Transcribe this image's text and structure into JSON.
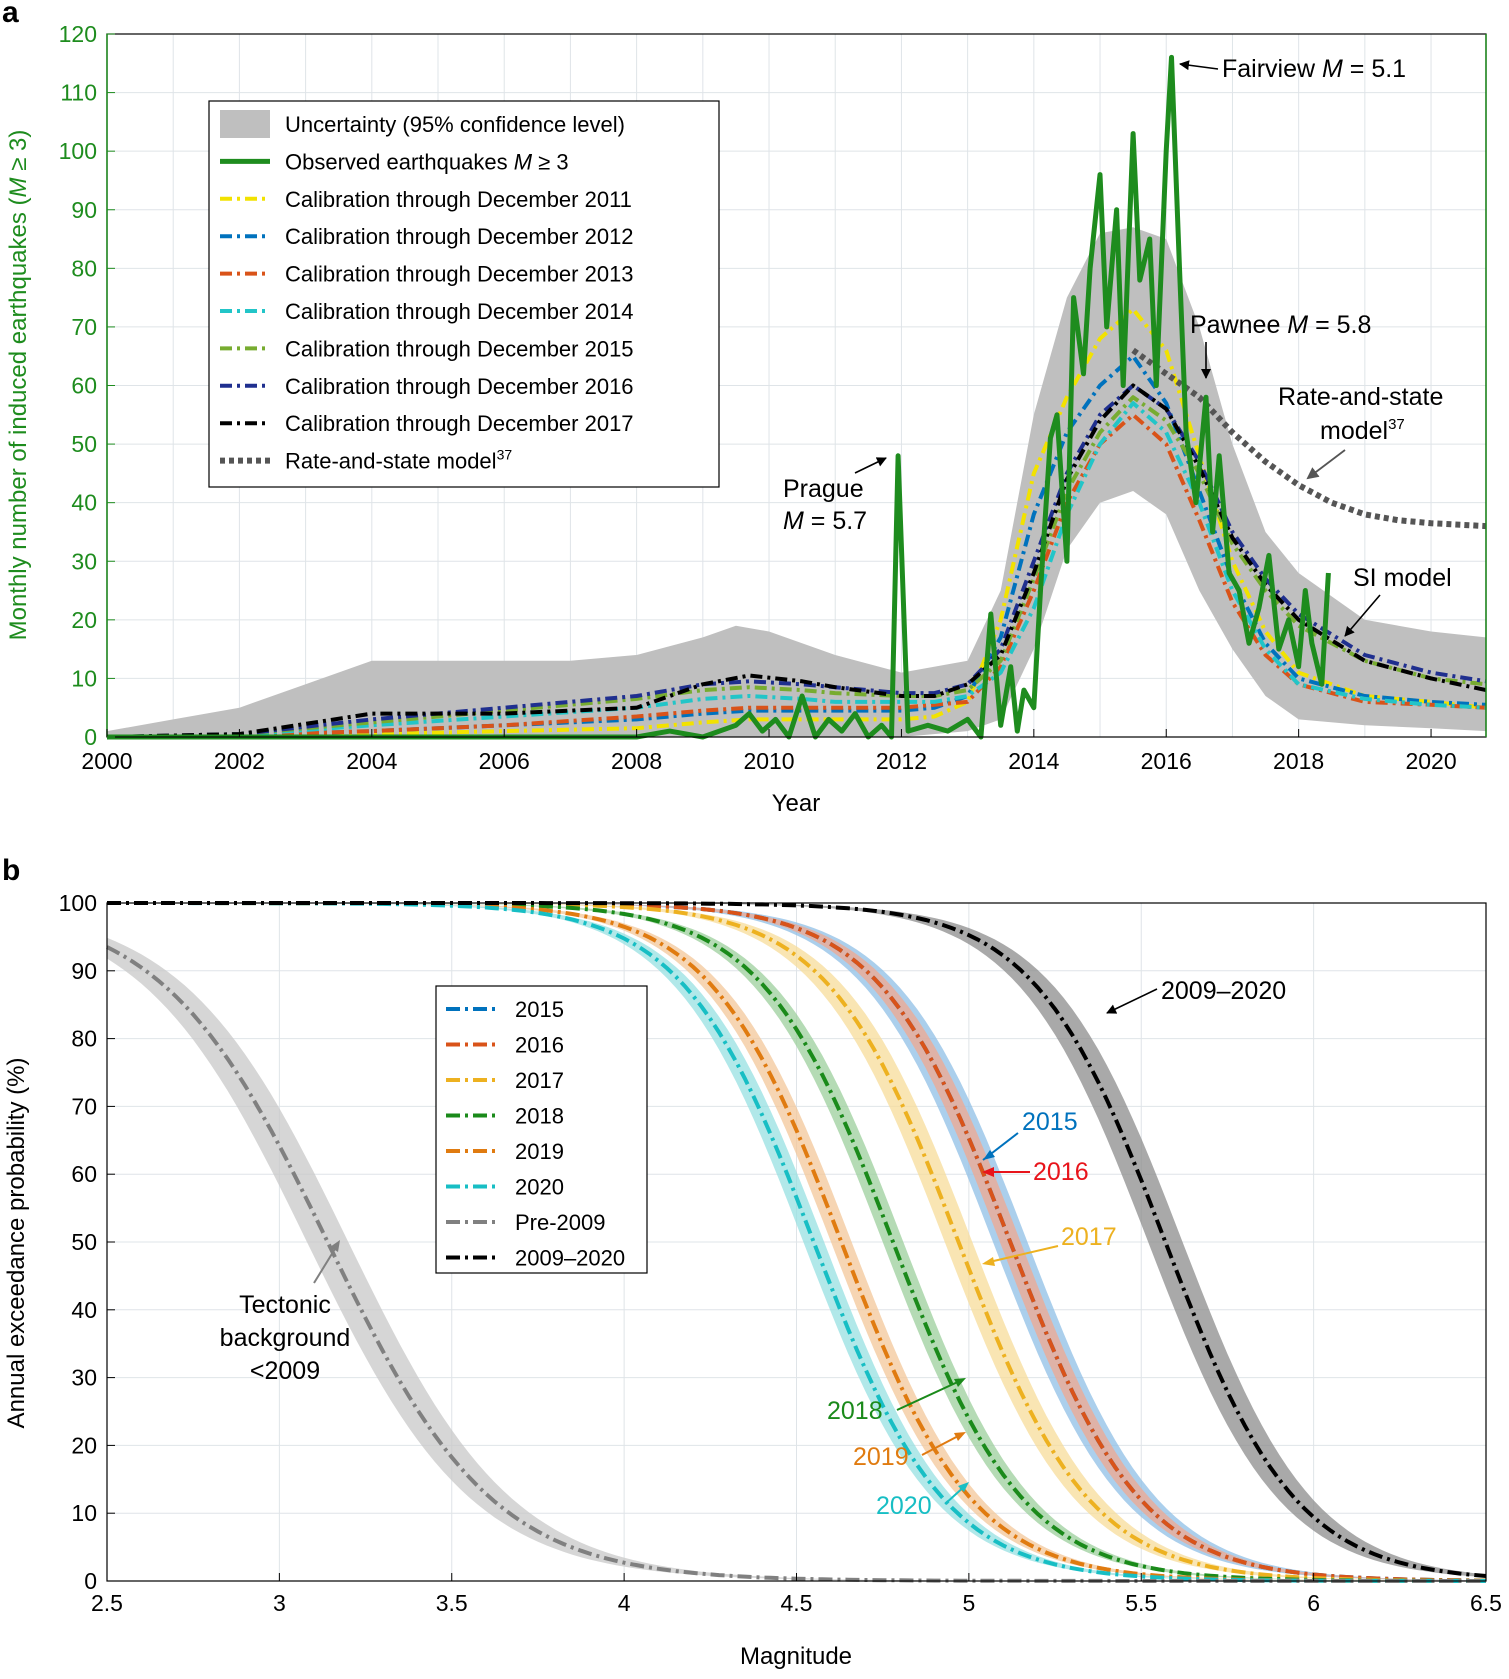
{
  "chart_data": [
    {
      "panel": "a",
      "type": "line",
      "xlabel": "Year",
      "ylabel": "Monthly number of induced earthquakes (M ≥ 3)",
      "xlim": [
        2000,
        2020.83
      ],
      "ylim": [
        0,
        120
      ],
      "xticks": [
        2000,
        2002,
        2004,
        2006,
        2008,
        2010,
        2012,
        2014,
        2016,
        2018,
        2020
      ],
      "yticks": [
        0,
        10,
        20,
        30,
        40,
        50,
        60,
        70,
        80,
        90,
        100,
        110,
        120
      ],
      "legend": {
        "position": "top-left",
        "entries": [
          {
            "label": "Uncertainty (95% confidence level)",
            "color": "#c0c0c0",
            "style": "band"
          },
          {
            "label": "Observed earthquakes M ≥ 3",
            "color": "#1e8c1e",
            "style": "solid"
          },
          {
            "label": "Calibration through December 2011",
            "color": "#f2e200",
            "style": "dashdot"
          },
          {
            "label": "Calibration through December 2012",
            "color": "#0072bd",
            "style": "dashdot"
          },
          {
            "label": "Calibration through December 2013",
            "color": "#d95319",
            "style": "dashdot"
          },
          {
            "label": "Calibration through December 2014",
            "color": "#22c5c8",
            "style": "dashdot"
          },
          {
            "label": "Calibration through December 2015",
            "color": "#77ac30",
            "style": "dashdot"
          },
          {
            "label": "Calibration through December 2016",
            "color": "#1f2f8f",
            "style": "dashdot"
          },
          {
            "label": "Calibration through December 2017",
            "color": "#000000",
            "style": "dashdot"
          },
          {
            "label": "Rate-and-state model37",
            "color": "#555555",
            "style": "dotted"
          }
        ]
      },
      "uncertainty_band": {
        "x": [
          2000,
          2001,
          2002,
          2003,
          2004,
          2005,
          2006,
          2007,
          2008,
          2009,
          2009.5,
          2010,
          2011,
          2012,
          2013,
          2013.5,
          2014,
          2014.5,
          2015,
          2015.5,
          2016,
          2016.5,
          2017,
          2017.5,
          2018,
          2019,
          2020,
          2020.83
        ],
        "upper": [
          1,
          3,
          5,
          9,
          13,
          13,
          13,
          13,
          14,
          17,
          19,
          18,
          14,
          11,
          13,
          25,
          55,
          75,
          86,
          87,
          85,
          70,
          50,
          35,
          28,
          20,
          18,
          17
        ],
        "lower": [
          0,
          0,
          0,
          0,
          0,
          0,
          0,
          0,
          0,
          0,
          0,
          0,
          0,
          0,
          1,
          3,
          15,
          32,
          40,
          42,
          38,
          25,
          15,
          7,
          3,
          2,
          1.5,
          1
        ]
      },
      "series": [
        {
          "name": "Observed earthquakes M ≥ 3",
          "x": [
            2000,
            2008,
            2008.5,
            2009,
            2009.5,
            2009.7,
            2009.9,
            2010.1,
            2010.3,
            2010.5,
            2010.7,
            2010.9,
            2011.1,
            2011.3,
            2011.5,
            2011.7,
            2011.85,
            2011.95,
            2012.1,
            2012.4,
            2012.7,
            2013.0,
            2013.2,
            2013.35,
            2013.5,
            2013.65,
            2013.75,
            2013.85,
            2014.0,
            2014.1,
            2014.25,
            2014.35,
            2014.5,
            2014.6,
            2014.75,
            2014.85,
            2015.0,
            2015.1,
            2015.25,
            2015.35,
            2015.5,
            2015.6,
            2015.75,
            2015.85,
            2016.0,
            2016.08,
            2016.2,
            2016.3,
            2016.45,
            2016.6,
            2016.7,
            2016.8,
            2016.95,
            2017.1,
            2017.25,
            2017.4,
            2017.55,
            2017.7,
            2017.85,
            2018.0,
            2018.1,
            2018.2,
            2018.35,
            2018.45
          ],
          "values": [
            0,
            0,
            1,
            0,
            2,
            4,
            1,
            3,
            0,
            7,
            0,
            3,
            1,
            4,
            0,
            2,
            0,
            48,
            1,
            2,
            1,
            3,
            0,
            21,
            2,
            12,
            1,
            8,
            5,
            25,
            51,
            55,
            30,
            75,
            62,
            80,
            96,
            70,
            90,
            60,
            103,
            78,
            85,
            60,
            100,
            116,
            80,
            52,
            40,
            58,
            35,
            48,
            28,
            25,
            16,
            22,
            31,
            15,
            20,
            12,
            25,
            16,
            9,
            28
          ]
        },
        {
          "name": "Calibration through December 2011",
          "x": [
            2000,
            2002,
            2004,
            2006,
            2008,
            2009,
            2009.7,
            2010.5,
            2011,
            2012,
            2012.5,
            2013,
            2013.5,
            2014,
            2014.5,
            2015,
            2015.5,
            2016,
            2016.5,
            2017,
            2017.5,
            2018,
            2019,
            2020,
            2020.83
          ],
          "values": [
            0,
            0.2,
            0.5,
            1,
            1.5,
            2.5,
            3,
            3,
            3,
            3,
            3.5,
            6,
            20,
            45,
            58,
            68,
            73,
            66,
            48,
            30,
            18,
            11,
            7,
            6,
            5
          ]
        },
        {
          "name": "Calibration through December 2012",
          "x": [
            2000,
            2002,
            2004,
            2006,
            2008,
            2009,
            2009.7,
            2010.5,
            2011,
            2012,
            2012.5,
            2013,
            2013.5,
            2014,
            2014.5,
            2015,
            2015.5,
            2016,
            2016.5,
            2017,
            2017.5,
            2018,
            2019,
            2020,
            2020.83
          ],
          "values": [
            0,
            0.3,
            1,
            2,
            3,
            4,
            4.5,
            4.5,
            4.5,
            4.5,
            5,
            7,
            17,
            38,
            52,
            60,
            65,
            57,
            42,
            27,
            16,
            10,
            7,
            6,
            5.5
          ]
        },
        {
          "name": "Calibration through December 2013",
          "x": [
            2000,
            2002,
            2004,
            2006,
            2008,
            2009,
            2009.7,
            2010.5,
            2011,
            2012,
            2012.5,
            2013,
            2013.5,
            2014,
            2014.5,
            2015,
            2015.5,
            2016,
            2016.5,
            2017,
            2017.5,
            2018,
            2019,
            2020,
            2020.83
          ],
          "values": [
            0,
            0.3,
            1,
            2,
            3.5,
            4.5,
            5,
            5,
            5,
            5,
            5.5,
            6,
            12,
            25,
            40,
            50,
            55,
            50,
            37,
            23,
            14,
            9,
            6,
            5.5,
            5
          ]
        },
        {
          "name": "Calibration through December 2014",
          "x": [
            2000,
            2002,
            2004,
            2006,
            2008,
            2009,
            2009.7,
            2010.5,
            2011,
            2012,
            2012.5,
            2013,
            2013.5,
            2014,
            2014.5,
            2015,
            2015.5,
            2016,
            2016.5,
            2017,
            2017.5,
            2018,
            2019,
            2020,
            2020.83
          ],
          "values": [
            0,
            0.4,
            2,
            3.5,
            5,
            6.5,
            7,
            6.5,
            6,
            6,
            6,
            7,
            11,
            22,
            38,
            50,
            57,
            52,
            40,
            25,
            15,
            9,
            6.5,
            5.5,
            5
          ]
        },
        {
          "name": "Calibration through December 2015",
          "x": [
            2000,
            2002,
            2004,
            2006,
            2008,
            2009,
            2009.7,
            2010.5,
            2011,
            2012,
            2012.5,
            2013,
            2013.5,
            2014,
            2014.5,
            2015,
            2015.5,
            2016,
            2016.5,
            2017,
            2017.5,
            2018,
            2019,
            2020,
            2020.83
          ],
          "values": [
            0,
            0.5,
            2.5,
            4.5,
            6.5,
            8,
            8.5,
            8,
            7.5,
            7,
            7,
            8,
            13,
            27,
            42,
            52,
            58,
            54,
            45,
            33,
            25,
            19,
            13,
            10,
            9
          ]
        },
        {
          "name": "Calibration through December 2016",
          "x": [
            2000,
            2002,
            2004,
            2006,
            2008,
            2009,
            2009.7,
            2010.5,
            2011,
            2012,
            2012.5,
            2013,
            2013.5,
            2014,
            2014.5,
            2015,
            2015.5,
            2016,
            2016.5,
            2017,
            2017.5,
            2018,
            2019,
            2020,
            2020.83
          ],
          "values": [
            0,
            0.5,
            3,
            5,
            7,
            9,
            9.5,
            9,
            8.5,
            7.5,
            7.5,
            9,
            15,
            30,
            45,
            55,
            60,
            56,
            47,
            35,
            27,
            21,
            14,
            11,
            9.5
          ]
        },
        {
          "name": "Calibration through December 2017",
          "x": [
            2000,
            2002,
            2004,
            2006,
            2008,
            2009,
            2009.7,
            2010.5,
            2011,
            2012,
            2012.5,
            2013,
            2013.5,
            2014,
            2014.5,
            2015,
            2015.5,
            2016,
            2016.5,
            2017,
            2017.5,
            2018,
            2019,
            2020,
            2020.83
          ],
          "values": [
            0,
            0.5,
            4,
            4,
            5,
            9,
            10.5,
            9.5,
            8.5,
            7,
            7,
            9,
            14,
            28,
            44,
            54,
            60,
            56,
            46,
            34,
            26,
            20,
            13,
            10,
            8
          ]
        },
        {
          "name": "Rate-and-state model37",
          "x": [
            2015.5,
            2016,
            2016.5,
            2017,
            2017.5,
            2018,
            2018.5,
            2019,
            2019.5,
            2020,
            2020.83
          ],
          "values": [
            66,
            62,
            58,
            52,
            47,
            43,
            40,
            38,
            37,
            36.5,
            36
          ]
        }
      ],
      "annotations": {
        "fairview": "Fairview M = 5.1",
        "pawnee": "Pawnee M = 5.8",
        "prague_line1": "Prague",
        "prague_line2": "M = 5.7",
        "rate_state_line1": "Rate-and-state",
        "rate_state_line2": "model37",
        "si_model": "SI model"
      }
    },
    {
      "panel": "b",
      "type": "line",
      "xlabel": "Magnitude",
      "ylabel": "Annual exceedance probability (%)",
      "xlim": [
        2.5,
        6.5
      ],
      "ylim": [
        0,
        100
      ],
      "xticks": [
        2.5,
        3,
        3.5,
        4,
        4.5,
        5,
        5.5,
        6,
        6.5
      ],
      "yticks": [
        0,
        10,
        20,
        30,
        40,
        50,
        60,
        70,
        80,
        90,
        100
      ],
      "legend": {
        "position": "center-left",
        "entries": [
          {
            "label": "2015",
            "color": "#0072bd"
          },
          {
            "label": "2016",
            "color": "#d95319"
          },
          {
            "label": "2017",
            "color": "#edb120"
          },
          {
            "label": "2018",
            "color": "#1a8a1a"
          },
          {
            "label": "2019",
            "color": "#e07b10"
          },
          {
            "label": "2020",
            "color": "#17bec4"
          },
          {
            "label": "Pre-2009",
            "color": "#808080"
          },
          {
            "label": "2009–2020",
            "color": "#000000"
          }
        ]
      },
      "series": [
        {
          "name": "2015",
          "midpoint_mag": 5.12,
          "scale": 0.19,
          "band": 0.05,
          "color": "#0072bd",
          "band_color": "#8fbfe6"
        },
        {
          "name": "2016",
          "midpoint_mag": 5.12,
          "scale": 0.19,
          "band": 0.03,
          "color": "#d95319",
          "band_color": "#f0a890"
        },
        {
          "name": "2017",
          "midpoint_mag": 4.97,
          "scale": 0.19,
          "band": 0.04,
          "color": "#edb120",
          "band_color": "#f7dc9a"
        },
        {
          "name": "2018",
          "midpoint_mag": 4.78,
          "scale": 0.19,
          "band": 0.03,
          "color": "#1a8a1a",
          "band_color": "#9ccf9c"
        },
        {
          "name": "2019",
          "midpoint_mag": 4.63,
          "scale": 0.19,
          "band": 0.03,
          "color": "#e07b10",
          "band_color": "#f3c79a"
        },
        {
          "name": "2020",
          "midpoint_mag": 4.55,
          "scale": 0.19,
          "band": 0.03,
          "color": "#17bec4",
          "band_color": "#97e0e2"
        },
        {
          "name": "Pre-2009",
          "midpoint_mag": 3.14,
          "scale": 0.24,
          "band": 0.06,
          "color": "#808080",
          "band_color": "#c8c8c8"
        },
        {
          "name": "2009–2020",
          "midpoint_mag": 5.57,
          "scale": 0.19,
          "band": 0.05,
          "color": "#000000",
          "band_color": "#8c8c8c"
        }
      ],
      "annotations": {
        "l2015": "2015",
        "l2016": "2016",
        "l2017": "2017",
        "l2018": "2018",
        "l2019": "2019",
        "l2020": "2020",
        "l2009_2020": "2009–2020",
        "tectonic_line1": "Tectonic",
        "tectonic_line2": "background",
        "tectonic_line3": "<2009"
      }
    }
  ],
  "labels": {
    "panel_a": "a",
    "panel_b": "b"
  },
  "colors": {
    "observed": "#1e8c1e",
    "grid": "#dfe4e8",
    "band": "#c0c0c0",
    "red_2016_label": "#e8141b"
  }
}
